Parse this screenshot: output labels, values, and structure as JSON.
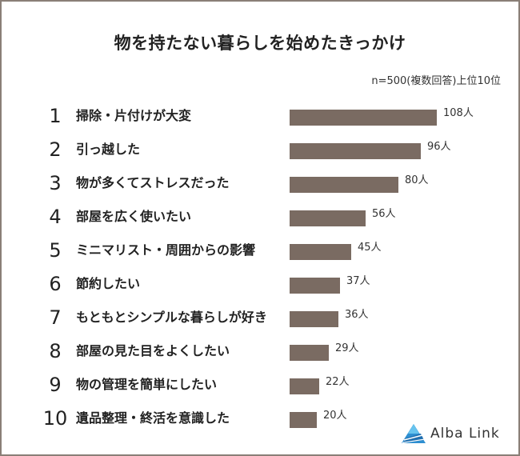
{
  "chart_data": {
    "type": "bar",
    "title": "物を持たない暮らしを始めたきっかけ",
    "note": "n=500(複数回答)上位10位",
    "unit": "人",
    "ranks": [
      "1",
      "2",
      "3",
      "4",
      "5",
      "6",
      "7",
      "8",
      "9",
      "10"
    ],
    "categories": [
      "掃除・片付けが大変",
      "引っ越した",
      "物が多くてストレスだった",
      "部屋を広く使いたい",
      "ミニマリスト・周囲からの影響",
      "節約したい",
      "もともとシンプルな暮らしが好き",
      "部屋の見た目をよくしたい",
      "物の管理を簡単にしたい",
      "遺品整理・終活を意識した"
    ],
    "values": [
      108,
      96,
      80,
      56,
      45,
      37,
      36,
      29,
      22,
      20
    ],
    "value_labels": [
      "108人",
      "96人",
      "80人",
      "56人",
      "45人",
      "37人",
      "36人",
      "29人",
      "22人",
      "20人"
    ],
    "bar_color": "#7a6b62"
  },
  "logo": {
    "text": "Alba Link"
  }
}
